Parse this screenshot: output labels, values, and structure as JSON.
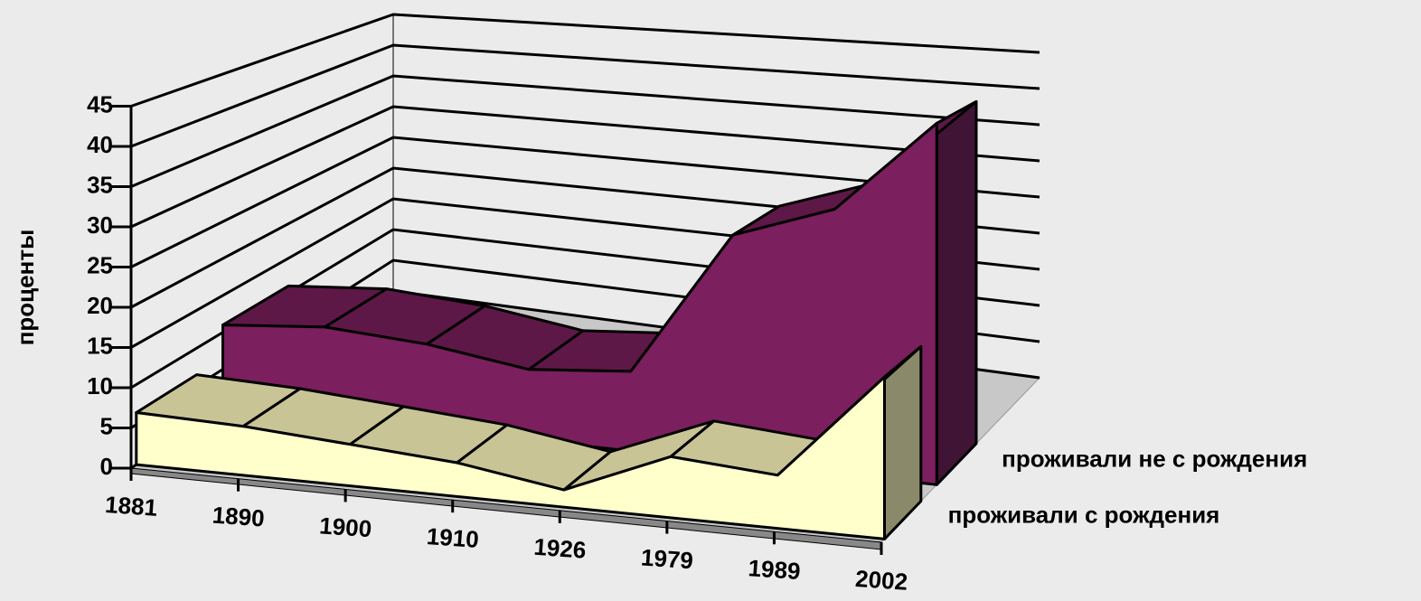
{
  "chart_data": {
    "type": "area3d",
    "y_label": "проценты",
    "categories": [
      "1881",
      "1890",
      "1900",
      "1910",
      "1926",
      "1979",
      "1989",
      "2002"
    ],
    "series": [
      {
        "name": "проживали с рождения",
        "color": "#ffffcc",
        "values": [
          6.5,
          6,
          5,
          4,
          2,
          7,
          6,
          18
        ]
      },
      {
        "name": "проживали не с рождения",
        "color": "#7b1f5e",
        "values": [
          11,
          12,
          11,
          9,
          10,
          28,
          32,
          43
        ]
      }
    ],
    "ylim": [
      0,
      45
    ],
    "yticks": [
      0,
      5,
      10,
      15,
      20,
      25,
      30,
      35,
      40,
      45
    ],
    "grid": true
  }
}
